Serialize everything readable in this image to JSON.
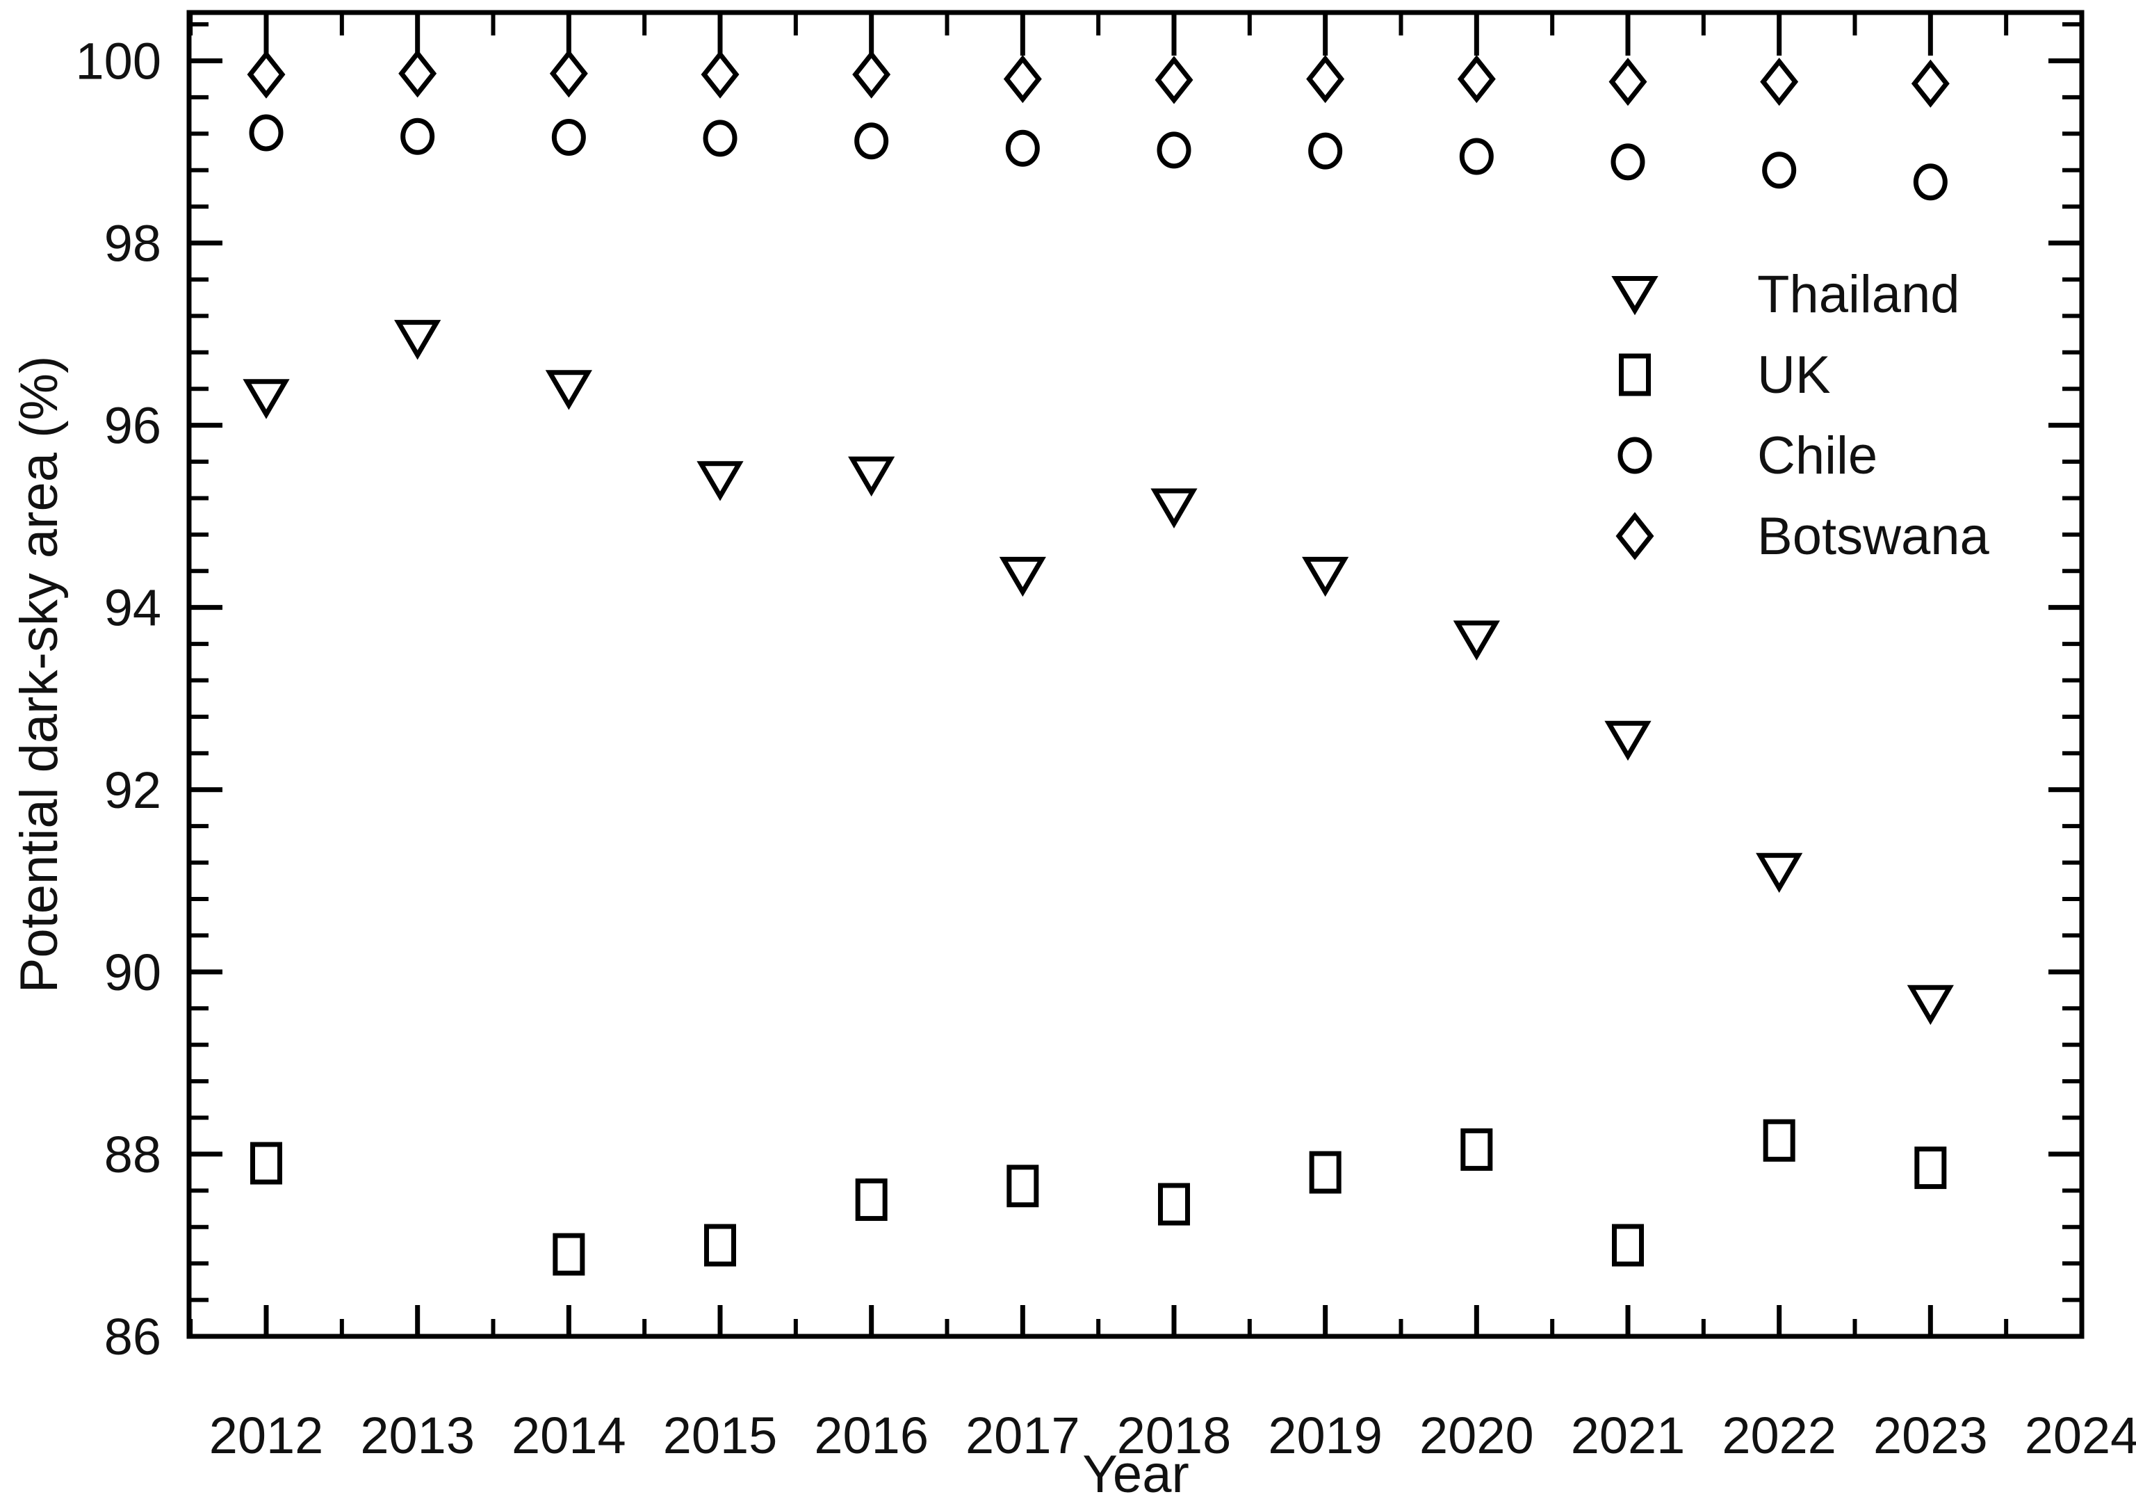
{
  "chart_data": {
    "type": "scatter",
    "title": "",
    "xlabel": "Year",
    "ylabel": "Potential dark-sky area (%)",
    "x": [
      2012,
      2013,
      2014,
      2015,
      2016,
      2017,
      2018,
      2019,
      2020,
      2021,
      2022,
      2023
    ],
    "series": [
      {
        "name": "Thailand",
        "marker": "triangle-down",
        "values": [
          96.3,
          96.95,
          96.4,
          95.4,
          95.45,
          94.35,
          95.1,
          94.35,
          93.65,
          92.55,
          91.1,
          89.65
        ]
      },
      {
        "name": "UK",
        "marker": "square",
        "values": [
          87.9,
          null,
          86.9,
          87.0,
          87.5,
          87.65,
          87.45,
          87.8,
          88.05,
          87.0,
          88.15,
          87.85
        ]
      },
      {
        "name": "Chile",
        "marker": "circle",
        "values": [
          99.21,
          99.17,
          99.16,
          99.15,
          99.12,
          99.04,
          99.02,
          99.01,
          98.95,
          98.89,
          98.8,
          98.67
        ]
      },
      {
        "name": "Botswana",
        "marker": "diamond",
        "values": [
          99.85,
          99.86,
          99.86,
          99.85,
          99.85,
          99.8,
          99.79,
          99.8,
          99.8,
          99.77,
          99.77,
          99.75
        ]
      }
    ],
    "xlim": [
      2011.49,
      2024.0
    ],
    "ylim": [
      86.0,
      100.53
    ],
    "x_major_ticks": [
      2012,
      2013,
      2014,
      2015,
      2016,
      2017,
      2018,
      2019,
      2020,
      2021,
      2022,
      2023,
      2024
    ],
    "x_tick_labels": [
      "2012",
      "2013",
      "2014",
      "2015",
      "2016",
      "2017",
      "2018",
      "2019",
      "2020",
      "2021",
      "2022",
      "2023",
      "2024"
    ],
    "y_major_ticks": [
      86,
      88,
      90,
      92,
      94,
      96,
      98,
      100
    ],
    "y_tick_labels": [
      "86",
      "88",
      "90",
      "92",
      "94",
      "96",
      "98",
      "100"
    ],
    "x_minor_step": 0.5,
    "y_minor_step": 0.4,
    "grid": false,
    "legend_position": "upper-right-inside",
    "marker_color": "#000000",
    "axis_color": "#000000",
    "background": "#ffffff"
  }
}
